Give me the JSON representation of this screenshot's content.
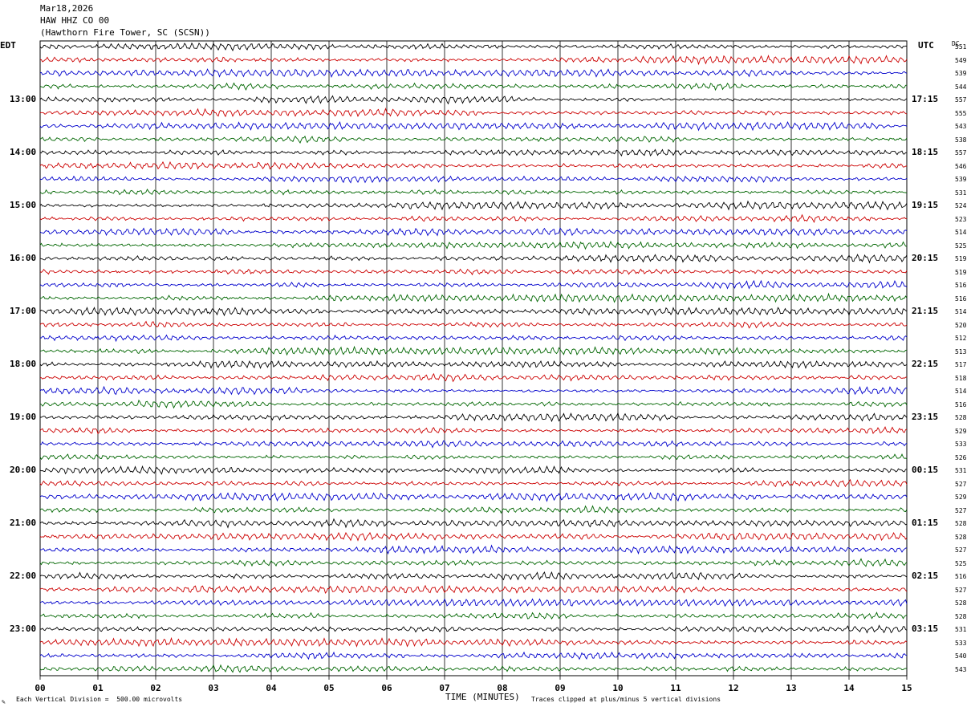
{
  "header": {
    "date": "Mar18,2026",
    "station": "HAW HHZ CO 00",
    "location": "(Hawthorn Fire Tower, SC (SCSN))"
  },
  "axes": {
    "left_zone": "EDT",
    "right_zone": "UTC",
    "dc_label": "DC"
  },
  "footer": {
    "scale_note": "Each Vertical Division =  500.00 microvolts",
    "xlabel": "TIME (MINUTES)",
    "clip_note": "Traces clipped at plus/minus 5 vertical divisions"
  },
  "chart_data": {
    "type": "line",
    "xlabel": "TIME (MINUTES)",
    "xlim": [
      0,
      15
    ],
    "x_ticks": [
      "00",
      "01",
      "02",
      "03",
      "04",
      "05",
      "06",
      "07",
      "08",
      "09",
      "10",
      "11",
      "12",
      "13",
      "14",
      "15"
    ],
    "left_hour_labels": [
      "13:00",
      "14:00",
      "15:00",
      "16:00",
      "17:00",
      "18:00",
      "19:00",
      "20:00",
      "21:00",
      "22:00",
      "23:00"
    ],
    "right_hour_labels": [
      "17:15",
      "18:15",
      "19:15",
      "20:15",
      "21:15",
      "22:15",
      "23:15",
      "00:15",
      "01:15",
      "02:15",
      "03:15"
    ],
    "trace_colors": [
      "#000000",
      "#cc0000",
      "#0000cc",
      "#006600"
    ],
    "trace_count": 48,
    "dc_offsets": [
      551,
      549,
      539,
      544,
      557,
      555,
      543,
      538,
      557,
      546,
      539,
      531,
      524,
      523,
      514,
      525,
      519,
      519,
      516,
      516,
      514,
      520,
      512,
      513,
      517,
      518,
      514,
      516,
      528,
      529,
      533,
      526,
      531,
      527,
      529,
      527,
      528,
      528,
      527,
      525,
      516,
      527,
      528,
      528,
      531,
      533,
      540,
      543
    ]
  }
}
